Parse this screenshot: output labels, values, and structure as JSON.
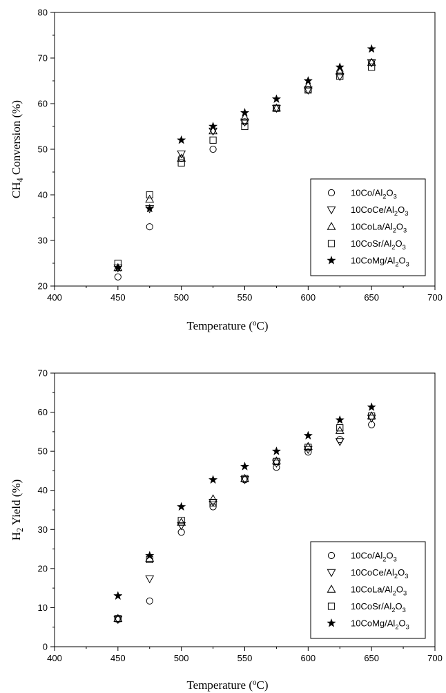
{
  "chart_data": [
    {
      "type": "scatter",
      "xlabel": "Temperature (°C)",
      "ylabel": "CH4 Conversion (%)",
      "xlim": [
        400,
        700
      ],
      "ylim": [
        20,
        80
      ],
      "xticks": [
        400,
        450,
        500,
        550,
        600,
        650,
        700
      ],
      "yticks": [
        20,
        30,
        40,
        50,
        60,
        70,
        80
      ],
      "grid": false,
      "legend_position": "bottom-right",
      "x": [
        450,
        475,
        500,
        525,
        550,
        575,
        600,
        625,
        650
      ],
      "series": [
        {
          "name": "10Co/Al2O3",
          "marker": "circle-open",
          "values": [
            22,
            33,
            48,
            50,
            56,
            59,
            63,
            67,
            69
          ]
        },
        {
          "name": "10CoCe/Al2O3",
          "marker": "triangle-down-open",
          "values": [
            24,
            37,
            49,
            54,
            56,
            59,
            63,
            66,
            69
          ]
        },
        {
          "name": "10CoLa/Al2O3",
          "marker": "triangle-up-open",
          "values": [
            24,
            39,
            48,
            54,
            57,
            59,
            64,
            67,
            69
          ]
        },
        {
          "name": "10CoSr/Al2O3",
          "marker": "square-open",
          "values": [
            25,
            40,
            47,
            52,
            55,
            59,
            63,
            66,
            68
          ]
        },
        {
          "name": "10CoMg/Al2O3",
          "marker": "star-filled",
          "values": [
            24,
            37,
            52,
            55,
            58,
            61,
            65,
            68,
            72
          ]
        }
      ]
    },
    {
      "type": "scatter",
      "xlabel": "Temperature (°C)",
      "ylabel": "H2 Yield (%)",
      "xlim": [
        400,
        700
      ],
      "ylim": [
        0,
        70
      ],
      "xticks": [
        400,
        450,
        500,
        550,
        600,
        650,
        700
      ],
      "yticks": [
        0,
        10,
        20,
        30,
        40,
        50,
        60,
        70
      ],
      "grid": false,
      "legend_position": "bottom-right",
      "x": [
        450,
        475,
        500,
        525,
        550,
        575,
        600,
        625,
        650
      ],
      "series": [
        {
          "name": "10Co/Al2O3",
          "marker": "circle-open",
          "values": [
            7,
            11.7,
            29.3,
            35.8,
            42.7,
            45.9,
            49.8,
            53,
            56.8
          ]
        },
        {
          "name": "10CoCe/Al2O3",
          "marker": "triangle-down-open",
          "values": [
            7,
            17.4,
            31,
            37,
            42.8,
            47,
            50.5,
            52.5,
            58.5
          ]
        },
        {
          "name": "10CoLa/Al2O3",
          "marker": "triangle-up-open",
          "values": [
            7.2,
            22.6,
            31.8,
            37.8,
            43,
            47.5,
            51.2,
            55.3,
            59
          ]
        },
        {
          "name": "10CoSr/Al2O3",
          "marker": "square-open",
          "values": [
            7.2,
            22.3,
            32.3,
            36.8,
            43,
            47.4,
            51,
            56,
            59
          ]
        },
        {
          "name": "10CoMg/Al2O3",
          "marker": "star-filled",
          "values": [
            13,
            23.3,
            35.8,
            42.7,
            46.1,
            50,
            54,
            58,
            61.3
          ]
        }
      ]
    }
  ]
}
